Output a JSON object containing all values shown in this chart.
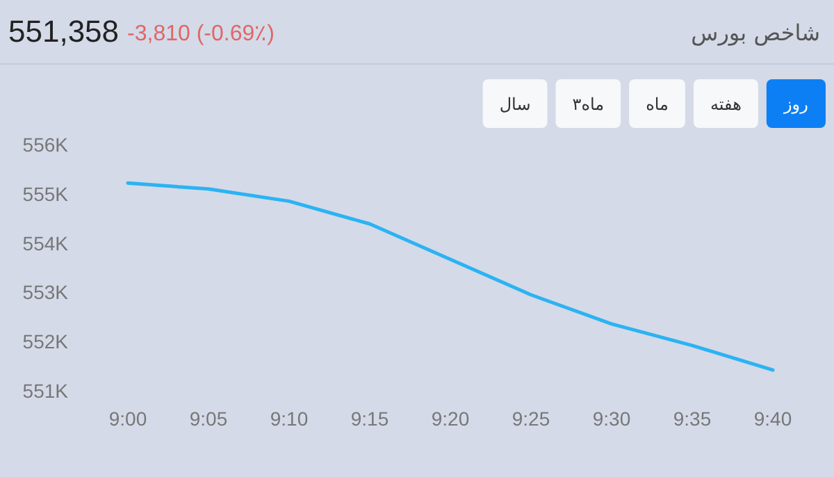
{
  "chart_data": {
    "type": "line",
    "title": "شاخص بورس",
    "annotations": [
      "551,358",
      "-3,810 (-0.69٪)",
      "روز",
      "هفته",
      "ماه",
      "۳ماه",
      "سال"
    ],
    "categories": [
      "9:00",
      "9:05",
      "9:10",
      "9:15",
      "9:20",
      "9:25",
      "9:30",
      "9:35",
      "9:40"
    ],
    "series": [
      {
        "color": "#2bb3f3",
        "values": [
          555220,
          555100,
          554850,
          554390,
          553670,
          552950,
          552360,
          551920,
          551420
        ]
      }
    ],
    "ylim": [
      551000,
      556000
    ],
    "yticks": [
      {
        "value": 551000,
        "label": "551K"
      },
      {
        "value": 552000,
        "label": "552K"
      },
      {
        "value": 553000,
        "label": "553K"
      },
      {
        "value": 554000,
        "label": "554K"
      },
      {
        "value": 555000,
        "label": "555K"
      },
      {
        "value": 556000,
        "label": "556K"
      }
    ],
    "marker": "none",
    "line_style": "solid"
  }
}
